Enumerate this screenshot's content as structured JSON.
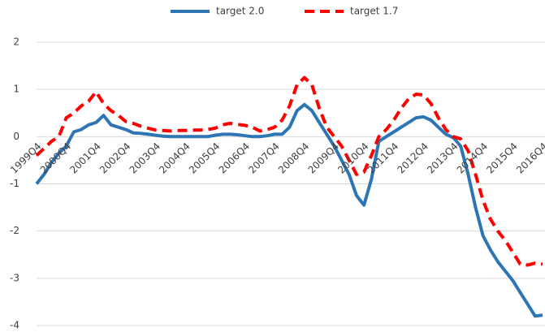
{
  "chart_data": {
    "type": "line",
    "categories": [
      "1999Q4",
      null,
      null,
      null,
      "2000Q4",
      null,
      null,
      null,
      "2001Q4",
      null,
      null,
      null,
      "2002Q4",
      null,
      null,
      null,
      "2003Q4",
      null,
      null,
      null,
      "2004Q4",
      null,
      null,
      null,
      "2005Q4",
      null,
      null,
      null,
      "2006Q4",
      null,
      null,
      null,
      "2007Q4",
      null,
      null,
      null,
      "2008Q4",
      null,
      null,
      null,
      "2009Q4",
      null,
      null,
      null,
      "2010Q4",
      null,
      null,
      null,
      "2011Q4",
      null,
      null,
      null,
      "2012Q4",
      null,
      null,
      null,
      "2013Q4",
      null,
      null,
      null,
      "2014Q4",
      null,
      null,
      null,
      "2015Q4",
      null,
      null,
      null,
      "2016Q4"
    ],
    "series": [
      {
        "name": "target 2.0",
        "color": "#2e75b6",
        "dash": false,
        "values": [
          -1.0,
          -0.8,
          -0.55,
          -0.35,
          -0.2,
          0.1,
          0.15,
          0.25,
          0.3,
          0.45,
          0.25,
          0.2,
          0.15,
          0.08,
          0.07,
          0.05,
          0.03,
          0.01,
          0.0,
          0.0,
          0.0,
          0.0,
          0.0,
          0.0,
          0.03,
          0.05,
          0.05,
          0.04,
          0.02,
          0.0,
          0.0,
          0.02,
          0.05,
          0.05,
          0.2,
          0.55,
          0.68,
          0.55,
          0.3,
          0.05,
          -0.2,
          -0.5,
          -0.8,
          -1.25,
          -1.45,
          -0.9,
          -0.1,
          0.0,
          0.1,
          0.2,
          0.3,
          0.4,
          0.42,
          0.35,
          0.2,
          0.05,
          -0.02,
          -0.2,
          -0.8,
          -1.5,
          -2.1,
          -2.4,
          -2.65,
          -2.85,
          -3.05,
          -3.3,
          -3.55,
          -3.8,
          -3.78
        ]
      },
      {
        "name": "target 1.7",
        "color": "#ff0000",
        "dash": true,
        "values": [
          -0.4,
          -0.25,
          -0.1,
          0.0,
          0.4,
          0.5,
          0.65,
          0.75,
          0.95,
          0.7,
          0.55,
          0.45,
          0.32,
          0.28,
          0.22,
          0.18,
          0.14,
          0.13,
          0.12,
          0.13,
          0.13,
          0.14,
          0.14,
          0.15,
          0.18,
          0.25,
          0.28,
          0.26,
          0.24,
          0.2,
          0.12,
          0.15,
          0.2,
          0.35,
          0.65,
          1.1,
          1.25,
          1.1,
          0.6,
          0.2,
          0.0,
          -0.2,
          -0.5,
          -0.8,
          -0.75,
          -0.4,
          0.0,
          0.15,
          0.35,
          0.6,
          0.8,
          0.9,
          0.88,
          0.7,
          0.4,
          0.15,
          0.0,
          -0.05,
          -0.3,
          -0.8,
          -1.35,
          -1.75,
          -2.0,
          -2.2,
          -2.45,
          -2.7,
          -2.72,
          -2.68,
          -2.7
        ]
      }
    ],
    "ylim": [
      -4,
      2
    ],
    "yticks": [
      -4,
      -3,
      -2,
      -1,
      0,
      1,
      2
    ],
    "grid": true,
    "legend": "top"
  }
}
